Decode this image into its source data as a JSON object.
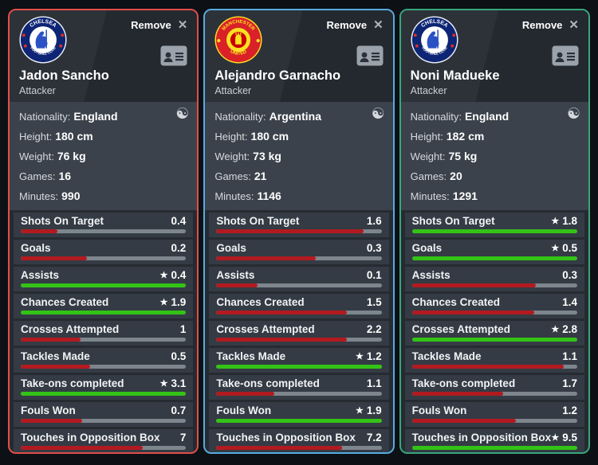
{
  "theme": {
    "page_bg": "#0d1015",
    "card_bg": "#262b31",
    "info_bg": "#3b424b",
    "row_bg": "#343b44",
    "bar_track": "#7d858d",
    "bar_loss": "#b21a20",
    "bar_win": "#33c316"
  },
  "icons": {
    "star": "★",
    "close": "✕",
    "compare": "☯"
  },
  "cards": [
    {
      "accent": "#e04f4a",
      "club": "Chelsea",
      "remove_label": "Remove",
      "name": "Jadon Sancho",
      "position": "Attacker",
      "info": [
        {
          "label": "Nationality:",
          "value": "England"
        },
        {
          "label": "Height:",
          "value": "180 cm"
        },
        {
          "label": "Weight:",
          "value": "76 kg"
        },
        {
          "label": "Games:",
          "value": "16"
        },
        {
          "label": "Minutes:",
          "value": "990"
        }
      ],
      "stats": [
        {
          "label": "Shots On Target",
          "value": "0.4",
          "win": false,
          "pct": 22
        },
        {
          "label": "Goals",
          "value": "0.2",
          "win": false,
          "pct": 40
        },
        {
          "label": "Assists",
          "value": "0.4",
          "win": true,
          "pct": 100
        },
        {
          "label": "Chances Created",
          "value": "1.9",
          "win": true,
          "pct": 100
        },
        {
          "label": "Crosses Attempted",
          "value": "1",
          "win": false,
          "pct": 36
        },
        {
          "label": "Tackles Made",
          "value": "0.5",
          "win": false,
          "pct": 42
        },
        {
          "label": "Take-ons completed",
          "value": "3.1",
          "win": true,
          "pct": 100
        },
        {
          "label": "Fouls Won",
          "value": "0.7",
          "win": false,
          "pct": 37
        },
        {
          "label": "Touches in Opposition Box",
          "value": "7",
          "win": false,
          "pct": 74
        }
      ]
    },
    {
      "accent": "#55ace0",
      "club": "Manchester United",
      "remove_label": "Remove",
      "name": "Alejandro Garnacho",
      "position": "Attacker",
      "info": [
        {
          "label": "Nationality:",
          "value": "Argentina"
        },
        {
          "label": "Height:",
          "value": "180 cm"
        },
        {
          "label": "Weight:",
          "value": "73 kg"
        },
        {
          "label": "Games:",
          "value": "21"
        },
        {
          "label": "Minutes:",
          "value": "1146"
        }
      ],
      "stats": [
        {
          "label": "Shots On Target",
          "value": "1.6",
          "win": false,
          "pct": 89
        },
        {
          "label": "Goals",
          "value": "0.3",
          "win": false,
          "pct": 60
        },
        {
          "label": "Assists",
          "value": "0.1",
          "win": false,
          "pct": 25
        },
        {
          "label": "Chances Created",
          "value": "1.5",
          "win": false,
          "pct": 79
        },
        {
          "label": "Crosses Attempted",
          "value": "2.2",
          "win": false,
          "pct": 79
        },
        {
          "label": "Tackles Made",
          "value": "1.2",
          "win": true,
          "pct": 100
        },
        {
          "label": "Take-ons completed",
          "value": "1.1",
          "win": false,
          "pct": 35
        },
        {
          "label": "Fouls Won",
          "value": "1.9",
          "win": true,
          "pct": 100
        },
        {
          "label": "Touches in Opposition Box",
          "value": "7.2",
          "win": false,
          "pct": 76
        }
      ]
    },
    {
      "accent": "#37a67c",
      "club": "Chelsea",
      "remove_label": "Remove",
      "name": "Noni Madueke",
      "position": "Attacker",
      "info": [
        {
          "label": "Nationality:",
          "value": "England"
        },
        {
          "label": "Height:",
          "value": "182 cm"
        },
        {
          "label": "Weight:",
          "value": "75 kg"
        },
        {
          "label": "Games:",
          "value": "20"
        },
        {
          "label": "Minutes:",
          "value": "1291"
        }
      ],
      "stats": [
        {
          "label": "Shots On Target",
          "value": "1.8",
          "win": true,
          "pct": 100
        },
        {
          "label": "Goals",
          "value": "0.5",
          "win": true,
          "pct": 100
        },
        {
          "label": "Assists",
          "value": "0.3",
          "win": false,
          "pct": 75
        },
        {
          "label": "Chances Created",
          "value": "1.4",
          "win": false,
          "pct": 74
        },
        {
          "label": "Crosses Attempted",
          "value": "2.8",
          "win": true,
          "pct": 100
        },
        {
          "label": "Tackles Made",
          "value": "1.1",
          "win": false,
          "pct": 92
        },
        {
          "label": "Take-ons completed",
          "value": "1.7",
          "win": false,
          "pct": 55
        },
        {
          "label": "Fouls Won",
          "value": "1.2",
          "win": false,
          "pct": 63
        },
        {
          "label": "Touches in Opposition Box",
          "value": "9.5",
          "win": true,
          "pct": 100
        }
      ]
    }
  ]
}
